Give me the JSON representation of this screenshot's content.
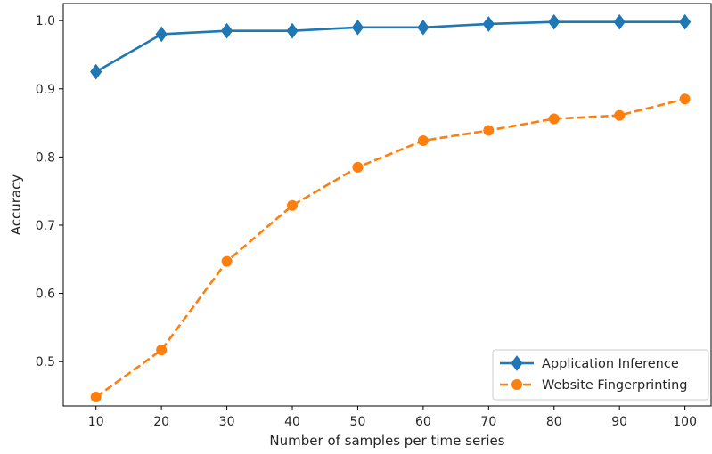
{
  "chart_data": {
    "type": "line",
    "xlabel": "Number of samples per time series",
    "ylabel": "Accuracy",
    "x": [
      10,
      20,
      30,
      40,
      50,
      60,
      70,
      80,
      90,
      100
    ],
    "xlim": [
      5,
      104
    ],
    "ylim": [
      0.435,
      1.025
    ],
    "xticks": [
      10,
      20,
      30,
      40,
      50,
      60,
      70,
      80,
      90,
      100
    ],
    "yticks": [
      0.5,
      0.6,
      0.7,
      0.8,
      0.9,
      1.0
    ],
    "ytick_labels": [
      "0.5",
      "0.6",
      "0.7",
      "0.8",
      "0.9",
      "1.0"
    ],
    "grid": false,
    "legend_position": "bottom-right",
    "series": [
      {
        "name": "Application Inference",
        "values": [
          0.925,
          0.98,
          0.985,
          0.985,
          0.99,
          0.99,
          0.995,
          0.998,
          0.998,
          0.998
        ],
        "color": "#1f77b4",
        "line_style": "solid",
        "marker": "diamond"
      },
      {
        "name": "Website Fingerprinting",
        "values": [
          0.448,
          0.517,
          0.647,
          0.729,
          0.785,
          0.824,
          0.839,
          0.856,
          0.861,
          0.885
        ],
        "color": "#ff7f0e",
        "line_style": "dashed",
        "marker": "circle"
      }
    ]
  }
}
